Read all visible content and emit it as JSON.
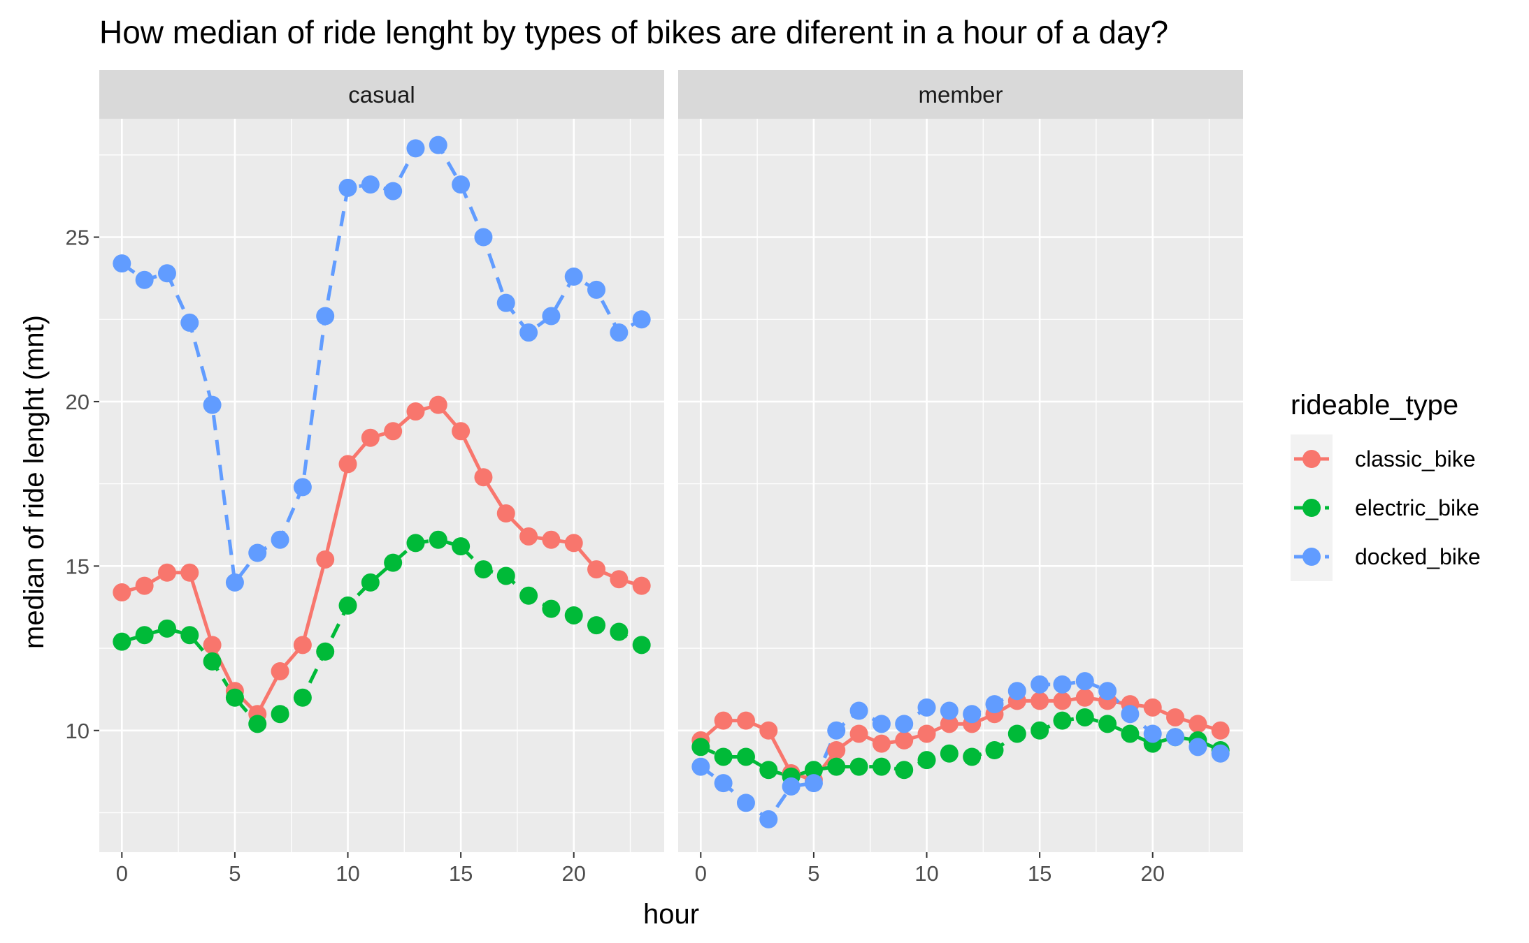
{
  "chart_data": {
    "type": "line",
    "title": "How median of ride lenght by types of bikes are diferent in a hour of a day?",
    "xlabel": "hour",
    "ylabel": "median of ride lenght (mnt)",
    "xlim": [
      -1,
      24
    ],
    "ylim": [
      6.3,
      28.6
    ],
    "x_ticks": [
      0,
      5,
      10,
      15,
      20
    ],
    "y_ticks": [
      10,
      15,
      20,
      25
    ],
    "grid": true,
    "legend": {
      "title": "rideable_type",
      "position": "right"
    },
    "facets": [
      "casual",
      "member"
    ],
    "x": [
      0,
      1,
      2,
      3,
      4,
      5,
      6,
      7,
      8,
      9,
      10,
      11,
      12,
      13,
      14,
      15,
      16,
      17,
      18,
      19,
      20,
      21,
      22,
      23
    ],
    "series": [
      {
        "name": "classic_bike",
        "color": "#F8766D",
        "line_style": "solid",
        "values": {
          "casual": [
            14.2,
            14.4,
            14.8,
            14.8,
            12.6,
            11.2,
            10.5,
            11.8,
            12.6,
            15.2,
            18.1,
            18.9,
            19.1,
            19.7,
            19.9,
            19.1,
            17.7,
            16.6,
            15.9,
            15.8,
            15.7,
            14.9,
            14.6,
            14.4
          ],
          "member": [
            9.7,
            10.3,
            10.3,
            10.0,
            8.7,
            8.5,
            9.4,
            9.9,
            9.6,
            9.7,
            9.9,
            10.2,
            10.2,
            10.5,
            10.9,
            10.9,
            10.9,
            11.0,
            10.9,
            10.8,
            10.7,
            10.4,
            10.2,
            10.0
          ]
        }
      },
      {
        "name": "electric_bike",
        "color": "#00BA38",
        "line_style": "dashed",
        "values": {
          "casual": [
            12.7,
            12.9,
            13.1,
            12.9,
            12.1,
            11.0,
            10.2,
            10.5,
            11.0,
            12.4,
            13.8,
            14.5,
            15.1,
            15.7,
            15.8,
            15.6,
            14.9,
            14.7,
            14.1,
            13.7,
            13.5,
            13.2,
            13.0,
            12.6
          ],
          "member": [
            9.5,
            9.2,
            9.2,
            8.8,
            8.6,
            8.8,
            8.9,
            8.9,
            8.9,
            8.8,
            9.1,
            9.3,
            9.2,
            9.4,
            9.9,
            10.0,
            10.3,
            10.4,
            10.2,
            9.9,
            9.6,
            9.8,
            9.7,
            9.4
          ]
        }
      },
      {
        "name": "docked_bike",
        "color": "#619CFF",
        "line_style": "dashed",
        "values": {
          "casual": [
            24.2,
            23.7,
            23.9,
            22.4,
            19.9,
            14.5,
            15.4,
            15.8,
            17.4,
            22.6,
            26.5,
            26.6,
            26.4,
            27.7,
            27.8,
            26.6,
            25.0,
            23.0,
            22.1,
            22.6,
            23.8,
            23.4,
            22.1,
            22.5
          ],
          "member": [
            8.9,
            8.4,
            7.8,
            7.3,
            8.3,
            8.4,
            10.0,
            10.6,
            10.2,
            10.2,
            10.7,
            10.6,
            10.5,
            10.8,
            11.2,
            11.4,
            11.4,
            11.5,
            11.2,
            10.5,
            9.9,
            9.8,
            9.5,
            9.3
          ]
        }
      }
    ]
  }
}
